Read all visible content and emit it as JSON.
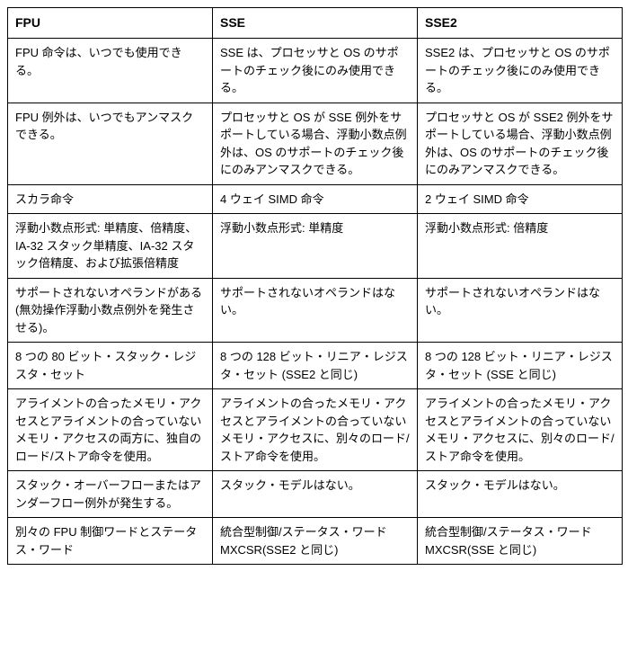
{
  "table": {
    "columns": [
      "FPU",
      "SSE",
      "SSE2"
    ],
    "rows": [
      [
        "FPU 命令は、いつでも使用できる。",
        "SSE は、プロセッサと OS のサポートのチェック後にのみ使用できる。",
        "SSE2 は、プロセッサと OS のサポートのチェック後にのみ使用できる。"
      ],
      [
        "FPU 例外は、いつでもアンマスクできる。",
        "プロセッサと OS が SSE 例外をサポートしている場合、浮動小数点例外は、OS のサポートのチェック後にのみアンマスクできる。",
        "プロセッサと OS が SSE2 例外をサポートしている場合、浮動小数点例外は、OS のサポートのチェック後にのみアンマスクできる。"
      ],
      [
        "スカラ命令",
        "4 ウェイ SIMD 命令",
        "2 ウェイ SIMD 命令"
      ],
      [
        "浮動小数点形式: 単精度、倍精度、IA-32 スタック単精度、IA-32 スタック倍精度、および拡張倍精度",
        "浮動小数点形式: 単精度",
        "浮動小数点形式: 倍精度"
      ],
      [
        "サポートされないオペランドがある(無効操作浮動小数点例外を発生させる)。",
        "サポートされないオペランドはない。",
        "サポートされないオペランドはない。"
      ],
      [
        "8 つの 80 ビット・スタック・レジスタ・セット",
        "8 つの 128 ビット・リニア・レジスタ・セット (SSE2 と同じ)",
        "8 つの 128 ビット・リニア・レジスタ・セット (SSE と同じ)"
      ],
      [
        "アライメントの合ったメモリ・アクセスとアライメントの合っていないメモリ・アクセスの両方に、独自のロード/ストア命令を使用。",
        "アライメントの合ったメモリ・アクセスとアライメントの合っていないメモリ・アクセスに、別々のロード/ストア命令を使用。",
        "アライメントの合ったメモリ・アクセスとアライメントの合っていないメモリ・アクセスに、別々のロード/ストア命令を使用。"
      ],
      [
        "スタック・オーバーフローまたはアンダーフロー例外が発生する。",
        "スタック・モデルはない。",
        "スタック・モデルはない。"
      ],
      [
        "別々の FPU 制御ワードとステータス・ワード",
        "統合型制御/ステータス・ワード MXCSR(SSE2 と同じ)",
        "統合型制御/ステータス・ワード MXCSR(SSE と同じ)"
      ]
    ],
    "border_color": "#000000",
    "background_color": "#ffffff",
    "header_fontsize": 14,
    "cell_fontsize": 13
  }
}
